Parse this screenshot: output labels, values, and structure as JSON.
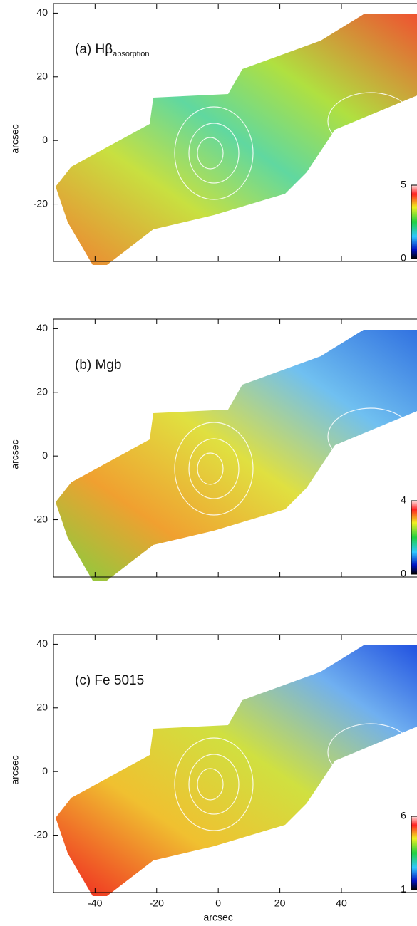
{
  "chart_data": [
    {
      "type": "map",
      "title": "(a) Hβ",
      "title_sub": "absorption",
      "ylabel": "arcsec",
      "xlim": [
        -53.5,
        68
      ],
      "xticks": [
        -40,
        -20,
        0,
        20,
        40
      ],
      "ylim": [
        -38,
        43
      ],
      "yticks": [
        -20,
        0,
        20,
        40
      ],
      "colorbar": {
        "lim": [
          0,
          5
        ],
        "ticks": [
          0,
          5
        ]
      }
    },
    {
      "type": "map",
      "title": "(b) Mgb",
      "ylabel": "arcsec",
      "xlim": [
        -53.5,
        68
      ],
      "xticks": [
        -40,
        -20,
        0,
        20,
        40
      ],
      "ylim": [
        -38,
        43
      ],
      "yticks": [
        -20,
        0,
        20,
        40
      ],
      "colorbar": {
        "lim": [
          0,
          4
        ],
        "ticks": [
          0,
          4
        ]
      }
    },
    {
      "type": "map",
      "title": "(c) Fe 5015",
      "ylabel": "arcsec",
      "xlabel": "arcsec",
      "xlim": [
        -53.5,
        68
      ],
      "xticks": [
        -40,
        -20,
        0,
        20,
        40
      ],
      "ylim": [
        -38,
        43
      ],
      "yticks": [
        -20,
        0,
        20,
        40
      ],
      "colorbar": {
        "lim": [
          1,
          6
        ],
        "ticks": [
          1,
          6
        ]
      }
    }
  ]
}
